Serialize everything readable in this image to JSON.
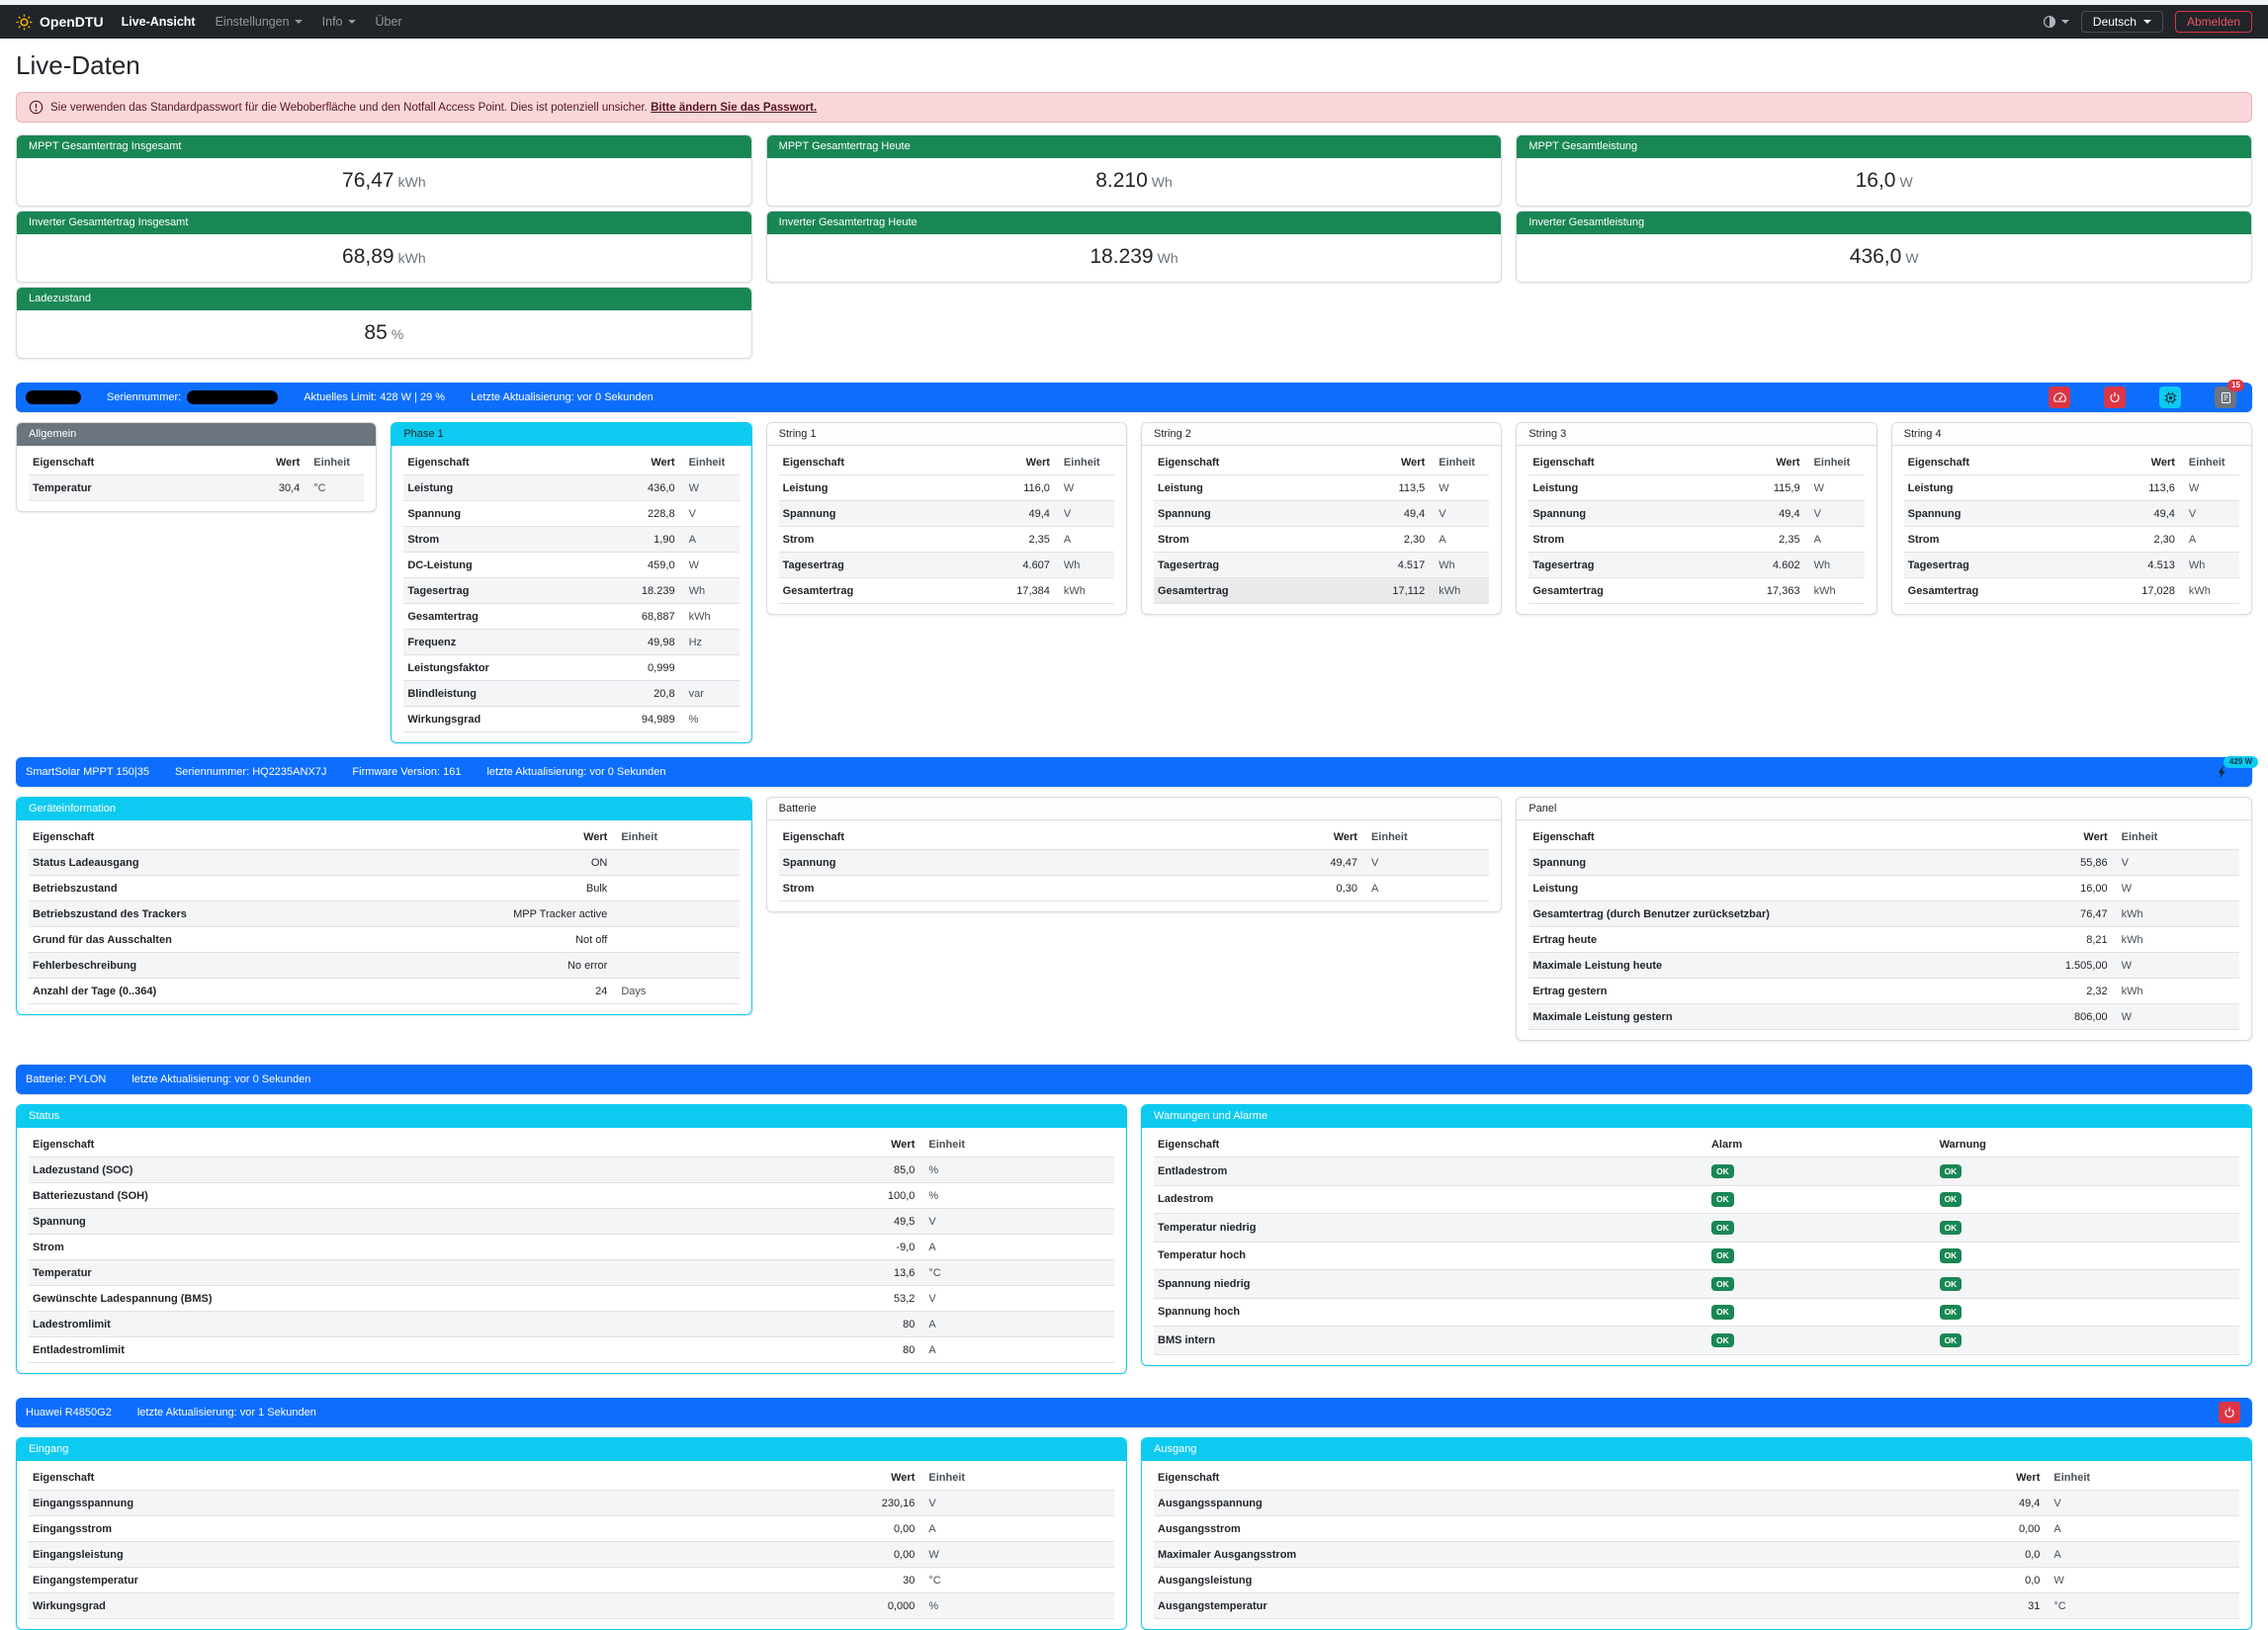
{
  "navbar": {
    "brand": "OpenDTU",
    "items": [
      {
        "label": "Live-Ansicht"
      },
      {
        "label": "Einstellungen"
      },
      {
        "label": "Info"
      },
      {
        "label": "Über"
      }
    ],
    "language": "Deutsch",
    "logout": "Abmelden"
  },
  "page": {
    "title": "Live-Daten"
  },
  "alert": {
    "text": "Sie verwenden das Standardpasswort für die Weboberfläche und den Notfall Access Point. Dies ist potenziell unsicher.",
    "link": "Bitte ändern Sie das Passwort."
  },
  "stats": [
    {
      "label": "MPPT Gesamtertrag Insgesamt",
      "value": "76,47",
      "unit": "kWh"
    },
    {
      "label": "MPPT Gesamtertrag Heute",
      "value": "8.210",
      "unit": "Wh"
    },
    {
      "label": "MPPT Gesamtleistung",
      "value": "16,0",
      "unit": "W"
    },
    {
      "label": "Inverter Gesamtertrag Insgesamt",
      "value": "68,89",
      "unit": "kWh"
    },
    {
      "label": "Inverter Gesamtertrag Heute",
      "value": "18.239",
      "unit": "Wh"
    },
    {
      "label": "Inverter Gesamtleistung",
      "value": "436,0",
      "unit": "W"
    },
    {
      "label": "Ladezustand",
      "value": "85",
      "unit": "%"
    }
  ],
  "headers": {
    "prop": "Eigenschaft",
    "value": "Wert",
    "unit": "Einheit",
    "alarm": "Alarm",
    "warning": "Warnung"
  },
  "inverter_bar": {
    "serial_label": "Seriennummer:",
    "limit": "Aktuelles Limit: 428 W | 29 %",
    "updated": "Letzte Aktualisierung: vor 0 Sekunden",
    "log_badge": "15"
  },
  "inverter_cards": {
    "allgemein": {
      "title": "Allgemein",
      "rows": [
        [
          "Temperatur",
          "30,4",
          "°C"
        ]
      ]
    },
    "phase1": {
      "title": "Phase 1",
      "rows": [
        [
          "Leistung",
          "436,0",
          "W"
        ],
        [
          "Spannung",
          "228,8",
          "V"
        ],
        [
          "Strom",
          "1,90",
          "A"
        ],
        [
          "DC-Leistung",
          "459,0",
          "W"
        ],
        [
          "Tagesertrag",
          "18.239",
          "Wh"
        ],
        [
          "Gesamtertrag",
          "68,887",
          "kWh"
        ],
        [
          "Frequenz",
          "49,98",
          "Hz"
        ],
        [
          "Leistungsfaktor",
          "0,999",
          ""
        ],
        [
          "Blindleistung",
          "20,8",
          "var"
        ],
        [
          "Wirkungsgrad",
          "94,989",
          "%"
        ]
      ]
    },
    "string1": {
      "title": "String 1",
      "rows": [
        [
          "Leistung",
          "116,0",
          "W"
        ],
        [
          "Spannung",
          "49,4",
          "V"
        ],
        [
          "Strom",
          "2,35",
          "A"
        ],
        [
          "Tagesertrag",
          "4.607",
          "Wh"
        ],
        [
          "Gesamtertrag",
          "17,384",
          "kWh"
        ]
      ]
    },
    "string2": {
      "title": "String 2",
      "hl_row": 5,
      "rows": [
        [
          "Leistung",
          "113,5",
          "W"
        ],
        [
          "Spannung",
          "49,4",
          "V"
        ],
        [
          "Strom",
          "2,30",
          "A"
        ],
        [
          "Tagesertrag",
          "4.517",
          "Wh"
        ],
        [
          "Gesamtertrag",
          "17,112",
          "kWh"
        ]
      ]
    },
    "string3": {
      "title": "String 3",
      "rows": [
        [
          "Leistung",
          "115,9",
          "W"
        ],
        [
          "Spannung",
          "49,4",
          "V"
        ],
        [
          "Strom",
          "2,35",
          "A"
        ],
        [
          "Tagesertrag",
          "4.602",
          "Wh"
        ],
        [
          "Gesamtertrag",
          "17,363",
          "kWh"
        ]
      ]
    },
    "string4": {
      "title": "String 4",
      "rows": [
        [
          "Leistung",
          "113,6",
          "W"
        ],
        [
          "Spannung",
          "49,4",
          "V"
        ],
        [
          "Strom",
          "2,30",
          "A"
        ],
        [
          "Tagesertrag",
          "4.513",
          "Wh"
        ],
        [
          "Gesamtertrag",
          "17,028",
          "kWh"
        ]
      ]
    }
  },
  "victron_bar": {
    "device": "SmartSolar MPPT 150|35",
    "serial": "Seriennummer: HQ2235ANX7J",
    "firmware": "Firmware Version: 161",
    "updated": "letzte Aktualisierung: vor 0 Sekunden",
    "power_badge": "429 W"
  },
  "victron_cards": {
    "device": {
      "title": "Geräteinformation",
      "rows": [
        [
          "Status Ladeausgang",
          "ON",
          ""
        ],
        [
          "Betriebszustand",
          "Bulk",
          ""
        ],
        [
          "Betriebszustand des Trackers",
          "MPP Tracker active",
          ""
        ],
        [
          "Grund für das Ausschalten",
          "Not off",
          ""
        ],
        [
          "Fehlerbeschreibung",
          "No error",
          ""
        ],
        [
          "Anzahl der Tage (0..364)",
          "24",
          "Days"
        ]
      ]
    },
    "batterie": {
      "title": "Batterie",
      "rows": [
        [
          "Spannung",
          "49,47",
          "V"
        ],
        [
          "Strom",
          "0,30",
          "A"
        ]
      ]
    },
    "panel": {
      "title": "Panel",
      "rows": [
        [
          "Spannung",
          "55,86",
          "V"
        ],
        [
          "Leistung",
          "16,00",
          "W"
        ],
        [
          "Gesamtertrag (durch Benutzer zurücksetzbar)",
          "76,47",
          "kWh"
        ],
        [
          "Ertrag heute",
          "8,21",
          "kWh"
        ],
        [
          "Maximale Leistung heute",
          "1.505,00",
          "W"
        ],
        [
          "Ertrag gestern",
          "2,32",
          "kWh"
        ],
        [
          "Maximale Leistung gestern",
          "806,00",
          "W"
        ]
      ]
    }
  },
  "pylon_bar": {
    "device": "Batterie: PYLON",
    "updated": "letzte Aktualisierung: vor 0 Sekunden"
  },
  "pylon_cards": {
    "status": {
      "title": "Status",
      "rows": [
        [
          "Ladezustand (SOC)",
          "85,0",
          "%"
        ],
        [
          "Batteriezustand (SOH)",
          "100,0",
          "%"
        ],
        [
          "Spannung",
          "49,5",
          "V"
        ],
        [
          "Strom",
          "-9,0",
          "A"
        ],
        [
          "Temperatur",
          "13,6",
          "°C"
        ],
        [
          "Gewünschte Ladespannung (BMS)",
          "53,2",
          "V"
        ],
        [
          "Ladestromlimit",
          "80",
          "A"
        ],
        [
          "Entladestromlimit",
          "80",
          "A"
        ]
      ]
    },
    "alarms": {
      "title": "Warnungen und Alarme",
      "ok": "OK",
      "rows": [
        "Entladestrom",
        "Ladestrom",
        "Temperatur niedrig",
        "Temperatur hoch",
        "Spannung niedrig",
        "Spannung hoch",
        "BMS intern"
      ]
    }
  },
  "huawei_bar": {
    "device": "Huawei R4850G2",
    "updated": "letzte Aktualisierung: vor 1 Sekunden"
  },
  "huawei_cards": {
    "eingang": {
      "title": "Eingang",
      "rows": [
        [
          "Eingangsspannung",
          "230,16",
          "V"
        ],
        [
          "Eingangsstrom",
          "0,00",
          "A"
        ],
        [
          "Eingangsleistung",
          "0,00",
          "W"
        ],
        [
          "Eingangstemperatur",
          "30",
          "°C"
        ],
        [
          "Wirkungsgrad",
          "0,000",
          "%"
        ]
      ]
    },
    "ausgang": {
      "title": "Ausgang",
      "rows": [
        [
          "Ausgangsspannung",
          "49,4",
          "V"
        ],
        [
          "Ausgangsstrom",
          "0,00",
          "A"
        ],
        [
          "Maximaler Ausgangsstrom",
          "0,0",
          "A"
        ],
        [
          "Ausgangsleistung",
          "0,0",
          "W"
        ],
        [
          "Ausgangstemperatur",
          "31",
          "°C"
        ]
      ]
    }
  },
  "colors": {
    "primary": "#0d6efd",
    "success": "#198754",
    "info": "#0dcaf0",
    "danger": "#dc3545",
    "secondary": "#6c757d"
  }
}
